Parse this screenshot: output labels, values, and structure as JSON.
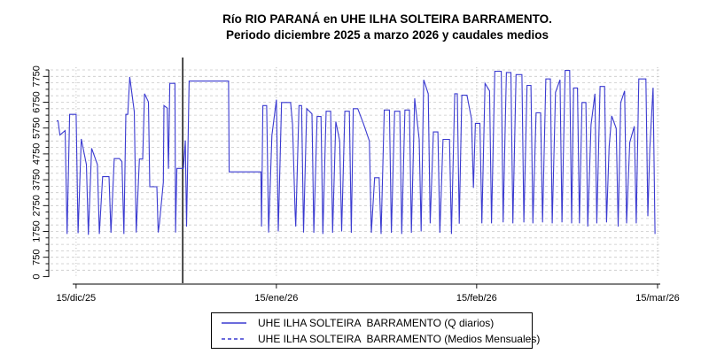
{
  "title": {
    "line1": "Río RIO PARANÁ en UHE ILHA SOLTEIRA  BARRAMENTO.",
    "line2": "Periodo diciembre 2025 a marzo 2026 y caudales medios"
  },
  "colors": {
    "series": "#3a3ad0",
    "event_line": "#000000",
    "grid_horizontal": "#c9c9c9",
    "grid_vertical": "#b3b3b3",
    "axis": "#000000",
    "text": "#000000"
  },
  "legend": {
    "items": [
      {
        "label": "UHE ILHA SOLTEIRA  BARRAMENTO (Q diarios)",
        "line_style": "solid"
      },
      {
        "label": "UHE ILHA SOLTEIRA  BARRAMENTO (Medios Mensuales)",
        "line_style": "dashed"
      }
    ]
  },
  "chart_data": {
    "type": "line",
    "title": "Río RIO PARANÁ en UHE ILHA SOLTEIRA  BARRAMENTO.",
    "subtitle": "Periodo diciembre 2025 a marzo 2026 y caudales medios",
    "x_axis": {
      "tick_labels": [
        "15/dic/25",
        "15/ene/26",
        "15/feb/26",
        "15/mar/26"
      ],
      "tick_days": [
        3,
        34,
        65,
        93
      ]
    },
    "y_axis": {
      "major_tick_labels": [
        "0",
        "750",
        "1750",
        "2750",
        "3750",
        "4750",
        "5750",
        "6750",
        "7750"
      ],
      "major_tick_values": [
        0,
        750,
        1750,
        2750,
        3750,
        4750,
        5750,
        6750,
        7750
      ],
      "minor_step": 250,
      "min": 0,
      "max": 8000
    },
    "grid": {
      "horizontal": "dashed",
      "vertical": "dotted"
    },
    "legend_position": "bottom",
    "annotations": {
      "event_line_day": 19.5
    },
    "series": [
      {
        "name": "UHE ILHA SOLTEIRA  BARRAMENTO (Q diarios)",
        "style": "solid",
        "color": "#3a3ad0",
        "path": [
          [
            0,
            6030
          ],
          [
            0.2,
            6030
          ],
          [
            0.5,
            5480
          ],
          [
            1.3,
            5650
          ],
          [
            1.6,
            1650
          ],
          [
            2,
            6280
          ],
          [
            3,
            6280
          ],
          [
            3.3,
            1680
          ],
          [
            3.8,
            5330
          ],
          [
            4.6,
            4340
          ],
          [
            4.9,
            1620
          ],
          [
            5.4,
            4970
          ],
          [
            6.3,
            4340
          ],
          [
            6.6,
            1650
          ],
          [
            7.1,
            3870
          ],
          [
            8.1,
            3870
          ],
          [
            8.4,
            1700
          ],
          [
            8.9,
            4570
          ],
          [
            9.7,
            4570
          ],
          [
            10.1,
            4450
          ],
          [
            10.4,
            1650
          ],
          [
            10.7,
            6280
          ],
          [
            11,
            6280
          ],
          [
            11.3,
            7730
          ],
          [
            12,
            6390
          ],
          [
            12.3,
            1710
          ],
          [
            12.8,
            4550
          ],
          [
            13.3,
            4550
          ],
          [
            13.6,
            7080
          ],
          [
            14.2,
            6760
          ],
          [
            14.4,
            3480
          ],
          [
            15.5,
            3480
          ],
          [
            15.7,
            1710
          ],
          [
            15.9,
            2060
          ],
          [
            16.5,
            3650
          ],
          [
            16.6,
            6620
          ],
          [
            17.1,
            6520
          ],
          [
            17.3,
            4170
          ],
          [
            17.5,
            7480
          ],
          [
            18.3,
            7480
          ],
          [
            18.4,
            1710
          ],
          [
            18.6,
            4190
          ],
          [
            19.6,
            4190
          ],
          [
            19.9,
            5270
          ],
          [
            20.1,
            1940
          ],
          [
            20.5,
            7570
          ],
          [
            26.6,
            7570
          ],
          [
            26.7,
            4055
          ],
          [
            31.6,
            4055
          ],
          [
            31.7,
            1940
          ],
          [
            31.9,
            6620
          ],
          [
            32.5,
            6620
          ],
          [
            32.8,
            1710
          ],
          [
            33.3,
            5470
          ],
          [
            34,
            6850
          ],
          [
            34.3,
            1750
          ],
          [
            34.8,
            6740
          ],
          [
            36.2,
            6740
          ],
          [
            36.5,
            5880
          ],
          [
            36.9,
            2480
          ],
          [
            37,
            1940
          ],
          [
            37.5,
            6620
          ],
          [
            37.9,
            6620
          ],
          [
            38.2,
            1710
          ],
          [
            38.7,
            6500
          ],
          [
            39.5,
            6300
          ],
          [
            39.8,
            1700
          ],
          [
            40.3,
            6200
          ],
          [
            40.9,
            6200
          ],
          [
            41.2,
            1650
          ],
          [
            41.7,
            6400
          ],
          [
            42.4,
            6400
          ],
          [
            42.7,
            1700
          ],
          [
            43.2,
            6000
          ],
          [
            43.8,
            5250
          ],
          [
            44.1,
            1750
          ],
          [
            44.6,
            6400
          ],
          [
            45.3,
            6400
          ],
          [
            45.6,
            1700
          ],
          [
            45.9,
            6500
          ],
          [
            46.6,
            6500
          ],
          [
            47.5,
            5900
          ],
          [
            48.4,
            5250
          ],
          [
            48.7,
            1700
          ],
          [
            49.2,
            3830
          ],
          [
            49.9,
            3830
          ],
          [
            50.2,
            1650
          ],
          [
            50.7,
            6450
          ],
          [
            51.5,
            6450
          ],
          [
            51.8,
            1700
          ],
          [
            52.3,
            6400
          ],
          [
            53.1,
            6400
          ],
          [
            53.4,
            1650
          ],
          [
            53.9,
            6450
          ],
          [
            54.6,
            6450
          ],
          [
            54.9,
            1700
          ],
          [
            55.4,
            6900
          ],
          [
            56.1,
            5310
          ],
          [
            56.4,
            1750
          ],
          [
            56.8,
            7615
          ],
          [
            57.5,
            7080
          ],
          [
            57.8,
            2060
          ],
          [
            58.3,
            5600
          ],
          [
            59,
            5600
          ],
          [
            59.3,
            1700
          ],
          [
            59.8,
            5310
          ],
          [
            60.8,
            5310
          ],
          [
            61.1,
            1650
          ],
          [
            61.6,
            7080
          ],
          [
            62,
            7080
          ],
          [
            62.3,
            2050
          ],
          [
            62.7,
            7020
          ],
          [
            63.5,
            7020
          ],
          [
            64.2,
            6110
          ],
          [
            64.5,
            3430
          ],
          [
            64.8,
            5930
          ],
          [
            65.5,
            5930
          ],
          [
            65.8,
            2060
          ],
          [
            66.3,
            7480
          ],
          [
            67,
            7190
          ],
          [
            67.3,
            2060
          ],
          [
            67.8,
            7950
          ],
          [
            68.8,
            7950
          ],
          [
            69.1,
            2100
          ],
          [
            69.6,
            7900
          ],
          [
            70.3,
            7900
          ],
          [
            70.6,
            2060
          ],
          [
            71.1,
            7820
          ],
          [
            72,
            7820
          ],
          [
            72.3,
            2100
          ],
          [
            72.8,
            7400
          ],
          [
            73.4,
            7400
          ],
          [
            73.7,
            2060
          ],
          [
            74.2,
            6340
          ],
          [
            74.9,
            6340
          ],
          [
            75.2,
            2100
          ],
          [
            75.7,
            7650
          ],
          [
            76.4,
            7650
          ],
          [
            76.7,
            2060
          ],
          [
            77.2,
            7130
          ],
          [
            77.9,
            7620
          ],
          [
            78.2,
            2100
          ],
          [
            78.7,
            7980
          ],
          [
            79.4,
            7980
          ],
          [
            79.7,
            2060
          ],
          [
            80,
            7300
          ],
          [
            80.6,
            7300
          ],
          [
            80.9,
            2060
          ],
          [
            81.3,
            6740
          ],
          [
            81.9,
            6740
          ],
          [
            82.2,
            1940
          ],
          [
            82.7,
            5880
          ],
          [
            83.3,
            7080
          ],
          [
            83.6,
            2060
          ],
          [
            84.1,
            7360
          ],
          [
            84.8,
            7360
          ],
          [
            85.1,
            2100
          ],
          [
            85.5,
            5020
          ],
          [
            85.9,
            6220
          ],
          [
            86.6,
            5740
          ],
          [
            86.9,
            1940
          ],
          [
            87.3,
            6740
          ],
          [
            87.9,
            7190
          ],
          [
            88.2,
            2060
          ],
          [
            88.7,
            5200
          ],
          [
            89.4,
            5820
          ],
          [
            89.7,
            2060
          ],
          [
            90.1,
            7650
          ],
          [
            91.2,
            7650
          ],
          [
            91.5,
            2340
          ],
          [
            91.8,
            4950
          ],
          [
            92.3,
            7310
          ],
          [
            92.6,
            1650
          ]
        ]
      }
    ]
  }
}
